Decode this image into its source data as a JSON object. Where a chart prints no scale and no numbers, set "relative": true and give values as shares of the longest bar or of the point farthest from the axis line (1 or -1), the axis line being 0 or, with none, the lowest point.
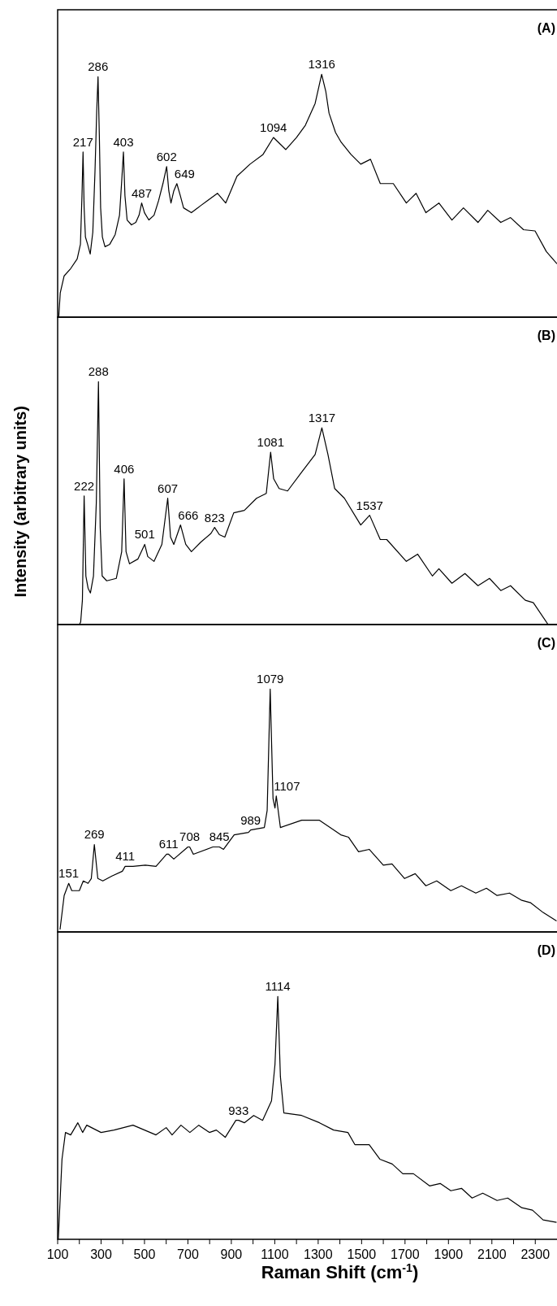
{
  "chart_data": [
    {
      "type": "line",
      "relative": true,
      "title": "(A)",
      "color": "#000000",
      "xlim": [
        100,
        2400
      ],
      "tick_labels": false,
      "x": [
        105,
        112,
        130,
        160,
        190,
        205,
        212,
        217,
        222,
        228,
        238,
        250,
        262,
        272,
        280,
        286,
        292,
        298,
        306,
        318,
        340,
        365,
        385,
        395,
        403,
        410,
        420,
        440,
        460,
        475,
        487,
        500,
        520,
        544,
        565,
        585,
        602,
        612,
        622,
        635,
        649,
        665,
        680,
        716,
        760,
        790,
        836,
        874,
        926,
        986,
        1046,
        1094,
        1151,
        1200,
        1241,
        1286,
        1316,
        1335,
        1350,
        1380,
        1406,
        1451,
        1496,
        1541,
        1586,
        1646,
        1706,
        1751,
        1796,
        1856,
        1916,
        1969,
        2036,
        2081,
        2141,
        2186,
        2246,
        2299,
        2351,
        2400
      ],
      "values": [
        0,
        0.1,
        0.17,
        0.2,
        0.24,
        0.3,
        0.5,
        0.68,
        0.45,
        0.33,
        0.3,
        0.26,
        0.35,
        0.6,
        0.85,
        0.99,
        0.75,
        0.45,
        0.33,
        0.29,
        0.3,
        0.34,
        0.42,
        0.56,
        0.68,
        0.5,
        0.4,
        0.38,
        0.39,
        0.42,
        0.47,
        0.43,
        0.4,
        0.42,
        0.48,
        0.55,
        0.62,
        0.52,
        0.47,
        0.52,
        0.55,
        0.5,
        0.45,
        0.43,
        0.46,
        0.48,
        0.51,
        0.47,
        0.58,
        0.63,
        0.67,
        0.74,
        0.69,
        0.74,
        0.79,
        0.88,
        1,
        0.93,
        0.84,
        0.76,
        0.72,
        0.67,
        0.63,
        0.65,
        0.55,
        0.55,
        0.47,
        0.51,
        0.43,
        0.47,
        0.4,
        0.45,
        0.39,
        0.44,
        0.39,
        0.41,
        0.36,
        0.355,
        0.27,
        0.22
      ],
      "annotations": [
        {
          "text": "217",
          "x": 217,
          "y": 0.68
        },
        {
          "text": "286",
          "x": 286,
          "y": 0.99
        },
        {
          "text": "403",
          "x": 403,
          "y": 0.68
        },
        {
          "text": "487",
          "x": 487,
          "y": 0.47
        },
        {
          "text": "602",
          "x": 602,
          "y": 0.62
        },
        {
          "text": "649",
          "x": 649,
          "y": 0.55
        },
        {
          "text": "1094",
          "x": 1094,
          "y": 0.74
        },
        {
          "text": "1316",
          "x": 1316,
          "y": 1
        }
      ]
    },
    {
      "type": "line",
      "relative": true,
      "title": "(B)",
      "ylabel": "Intensity (arbitrary units)",
      "color": "#000000",
      "xlim": [
        100,
        2400
      ],
      "tick_labels": false,
      "x": [
        200,
        206,
        214,
        222,
        230,
        240,
        251,
        265,
        278,
        288,
        296,
        305,
        326,
        370,
        395,
        406,
        415,
        431,
        470,
        501,
        515,
        544,
        580,
        607,
        620,
        635,
        666,
        690,
        716,
        760,
        806,
        823,
        845,
        870,
        911,
        960,
        1016,
        1061,
        1081,
        1095,
        1120,
        1159,
        1226,
        1286,
        1317,
        1345,
        1376,
        1421,
        1496,
        1537,
        1586,
        1616,
        1706,
        1758,
        1826,
        1856,
        1916,
        1976,
        2036,
        2089,
        2141,
        2186,
        2254,
        2291,
        2359,
        2400
      ],
      "values": [
        0,
        0.01,
        0.1,
        0.53,
        0.2,
        0.15,
        0.13,
        0.2,
        0.5,
        1,
        0.4,
        0.2,
        0.18,
        0.19,
        0.3,
        0.6,
        0.3,
        0.25,
        0.27,
        0.33,
        0.28,
        0.26,
        0.33,
        0.52,
        0.36,
        0.33,
        0.41,
        0.33,
        0.3,
        0.34,
        0.375,
        0.4,
        0.37,
        0.36,
        0.46,
        0.47,
        0.52,
        0.54,
        0.71,
        0.6,
        0.56,
        0.55,
        0.63,
        0.7,
        0.81,
        0.7,
        0.56,
        0.52,
        0.41,
        0.45,
        0.35,
        0.35,
        0.26,
        0.29,
        0.2,
        0.23,
        0.17,
        0.21,
        0.16,
        0.19,
        0.14,
        0.16,
        0.1,
        0.09,
        0,
        0
      ],
      "annotations": [
        {
          "text": "222",
          "x": 222,
          "y": 0.53
        },
        {
          "text": "288",
          "x": 288,
          "y": 1
        },
        {
          "text": "406",
          "x": 406,
          "y": 0.6
        },
        {
          "text": "501",
          "x": 501,
          "y": 0.33
        },
        {
          "text": "607",
          "x": 607,
          "y": 0.52
        },
        {
          "text": "666",
          "x": 666,
          "y": 0.41
        },
        {
          "text": "823",
          "x": 823,
          "y": 0.4
        },
        {
          "text": "1081",
          "x": 1081,
          "y": 0.71
        },
        {
          "text": "1317",
          "x": 1317,
          "y": 0.81
        },
        {
          "text": "1537",
          "x": 1537,
          "y": 0.45
        }
      ]
    },
    {
      "type": "line",
      "relative": true,
      "title": "(C)",
      "color": "#000000",
      "xlim": [
        100,
        2400
      ],
      "tick_labels": false,
      "x": [
        111,
        130,
        151,
        165,
        200,
        218,
        240,
        255,
        269,
        285,
        308,
        350,
        398,
        411,
        447,
        504,
        553,
        602,
        611,
        635,
        700,
        708,
        725,
        815,
        845,
        864,
        913,
        979,
        989,
        1052,
        1065,
        1079,
        1092,
        1101,
        1107,
        1126,
        1224,
        1306,
        1404,
        1440,
        1486,
        1535,
        1600,
        1640,
        1698,
        1747,
        1796,
        1846,
        1911,
        1960,
        2026,
        2075,
        2124,
        2181,
        2238,
        2279,
        2336,
        2398
      ],
      "values": [
        0.01,
        0.15,
        0.2,
        0.17,
        0.17,
        0.21,
        0.2,
        0.22,
        0.36,
        0.22,
        0.21,
        0.23,
        0.25,
        0.27,
        0.27,
        0.275,
        0.27,
        0.32,
        0.32,
        0.3,
        0.35,
        0.35,
        0.32,
        0.35,
        0.35,
        0.34,
        0.4,
        0.41,
        0.42,
        0.43,
        0.5,
        1,
        0.55,
        0.51,
        0.56,
        0.43,
        0.46,
        0.46,
        0.4,
        0.39,
        0.33,
        0.34,
        0.275,
        0.28,
        0.22,
        0.24,
        0.19,
        0.21,
        0.17,
        0.19,
        0.16,
        0.18,
        0.15,
        0.16,
        0.13,
        0.12,
        0.08,
        0.045
      ],
      "annotations": [
        {
          "text": "151",
          "x": 151,
          "y": 0.2
        },
        {
          "text": "269",
          "x": 269,
          "y": 0.36
        },
        {
          "text": "411",
          "x": 411,
          "y": 0.27
        },
        {
          "text": "611",
          "x": 611,
          "y": 0.32
        },
        {
          "text": "708",
          "x": 708,
          "y": 0.35
        },
        {
          "text": "845",
          "x": 845,
          "y": 0.35
        },
        {
          "text": "989",
          "x": 989,
          "y": 0.42
        },
        {
          "text": "1079",
          "x": 1079,
          "y": 1
        },
        {
          "text": "1107",
          "x": 1107,
          "y": 0.56
        }
      ]
    },
    {
      "type": "line",
      "relative": true,
      "title": "(D)",
      "xlabel": "Raman Shift (cm$^{-1}$)",
      "color": "#000000",
      "xlim": [
        100,
        2400
      ],
      "tick_labels": "x",
      "xticks": [
        100,
        {
          "value": 200,
          "label": null
        },
        300,
        {
          "value": 400,
          "label": null
        },
        500,
        {
          "value": 600,
          "label": null
        },
        700,
        {
          "value": 800,
          "label": null
        },
        900,
        {
          "value": 1000,
          "label": null
        },
        1100,
        {
          "value": 1200,
          "label": null
        },
        1300,
        {
          "value": 1400,
          "label": null
        },
        1500,
        {
          "value": 1600,
          "label": null
        },
        1700,
        {
          "value": 1800,
          "label": null
        },
        1900,
        {
          "value": 2000,
          "label": null
        },
        2100,
        {
          "value": 2200,
          "label": null
        },
        2300
      ],
      "x": [
        103,
        120,
        136,
        160,
        193,
        215,
        234,
        300,
        360,
        447,
        553,
        600,
        627,
        668,
        709,
        750,
        799,
        831,
        872,
        921,
        933,
        960,
        1003,
        1044,
        1085,
        1101,
        1114,
        1126,
        1142,
        1224,
        1306,
        1371,
        1437,
        1469,
        1535,
        1584,
        1641,
        1690,
        1739,
        1813,
        1862,
        1911,
        1960,
        2009,
        2058,
        2124,
        2173,
        2238,
        2287,
        2336,
        2398
      ],
      "values": [
        0,
        0.33,
        0.44,
        0.43,
        0.48,
        0.44,
        0.47,
        0.44,
        0.45,
        0.47,
        0.43,
        0.46,
        0.43,
        0.47,
        0.44,
        0.47,
        0.44,
        0.45,
        0.42,
        0.49,
        0.49,
        0.48,
        0.51,
        0.49,
        0.57,
        0.72,
        1,
        0.67,
        0.52,
        0.51,
        0.48,
        0.45,
        0.44,
        0.39,
        0.39,
        0.33,
        0.31,
        0.27,
        0.27,
        0.22,
        0.23,
        0.2,
        0.21,
        0.17,
        0.19,
        0.16,
        0.17,
        0.13,
        0.12,
        0.08,
        0.07
      ],
      "annotations": [
        {
          "text": "933",
          "x": 933,
          "y": 0.49
        },
        {
          "text": "1114",
          "x": 1114,
          "y": 1
        }
      ]
    }
  ]
}
